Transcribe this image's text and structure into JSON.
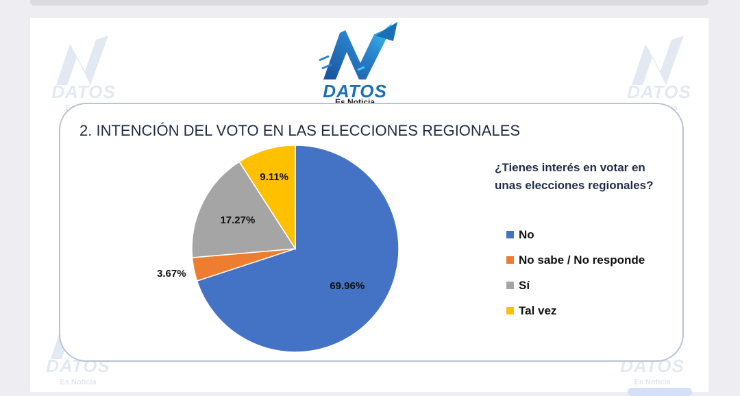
{
  "logo": {
    "brand": "DATOS",
    "tagline": "Es Noticia"
  },
  "watermark": {
    "brand": "DATOS",
    "tagline": "Es Noticia"
  },
  "chart_data": {
    "type": "pie",
    "title": "2. INTENCIÓN DEL VOTO EN LAS ELECCIONES REGIONALES",
    "question": "¿Tienes interés en votar en unas elecciones regionales?",
    "legend_position": "right",
    "categories": [
      "No",
      "No sabe / No responde",
      "Sí",
      "Tal vez"
    ],
    "values": [
      69.96,
      3.67,
      17.27,
      9.11
    ],
    "labels": [
      "69.96%",
      "3.67%",
      "17.27%",
      "9.11%"
    ],
    "colors": [
      "#4472c4",
      "#ed7d31",
      "#a5a5a5",
      "#ffc000"
    ],
    "start_angle_deg": 0,
    "direction": "clockwise"
  }
}
